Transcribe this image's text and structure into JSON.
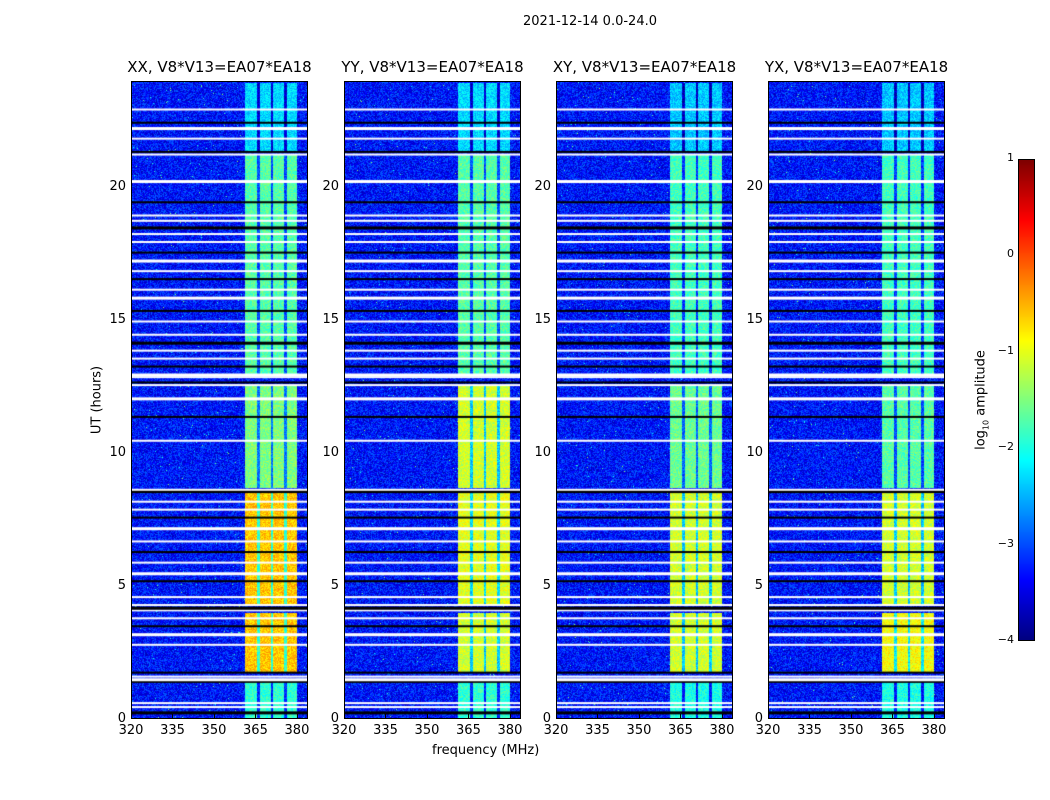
{
  "chart_data": {
    "type": "heatmap",
    "title": "2021-12-14 0.0-24.0",
    "xlabel": "frequency (MHz)",
    "ylabel": "UT (hours)",
    "xlim": [
      320,
      384
    ],
    "ylim": [
      0,
      24
    ],
    "xticks": [
      "320",
      "335",
      "350",
      "365",
      "380"
    ],
    "xtick_values": [
      320,
      335,
      350,
      365,
      380
    ],
    "yticks": [
      "0",
      "5",
      "10",
      "15",
      "20"
    ],
    "ytick_values": [
      0,
      5,
      10,
      15,
      20
    ],
    "panels": [
      {
        "title": "XX, V8*V13=EA07*EA18"
      },
      {
        "title": "YY, V8*V13=EA07*EA18"
      },
      {
        "title": "XY, V8*V13=EA07*EA18"
      },
      {
        "title": "YX, V8*V13=EA07*EA18"
      }
    ],
    "colorbar": {
      "label": "log10 amplitude",
      "label_main": "log",
      "label_sub": "10",
      "label_rest": " amplitude",
      "range": [
        -4,
        1
      ],
      "ticks": [
        "1",
        "0",
        "−1",
        "−2",
        "−3",
        "−4"
      ],
      "tick_values": [
        1,
        0,
        -1,
        -2,
        -3,
        -4
      ],
      "colormap": "jet"
    },
    "background_level": -3.3,
    "bright_band_mhz": [
      361,
      380
    ],
    "band_dividers_mhz": [
      366,
      371,
      376
    ],
    "segments": [
      {
        "t": [
          0,
          1.5
        ],
        "band_level": [
          -1.9,
          -1.9,
          -2.0,
          -2.0
        ]
      },
      {
        "t": [
          1.7,
          4.0
        ],
        "band_level": [
          -0.6,
          -1.1,
          -1.1,
          -0.9
        ]
      },
      {
        "t": [
          4.3,
          8.6
        ],
        "band_level": [
          -0.6,
          -1.0,
          -1.1,
          -1.1
        ]
      },
      {
        "t": [
          8.7,
          12.6
        ],
        "band_level": [
          -1.5,
          -1.1,
          -1.6,
          -1.7
        ]
      },
      {
        "t": [
          13.0,
          21.3
        ],
        "band_level": [
          -1.7,
          -1.7,
          -1.8,
          -1.8
        ]
      },
      {
        "t": [
          21.4,
          24
        ],
        "band_level": [
          -2.3,
          -2.3,
          -2.4,
          -2.4
        ]
      }
    ],
    "flagged_hours": [
      0.25,
      0.45,
      0.6,
      1.4,
      1.5,
      1.6,
      1.75,
      2.8,
      3.2,
      3.5,
      3.8,
      4.1,
      4.2,
      4.3,
      4.6,
      5.2,
      5.5,
      5.9,
      6.3,
      6.7,
      7.2,
      7.6,
      7.9,
      8.2,
      8.6,
      8.65,
      10.5,
      11.4,
      12.1,
      12.6,
      12.7,
      12.9,
      13.0,
      13.3,
      13.6,
      13.9,
      14.2,
      14.5,
      15.0,
      15.4,
      15.9,
      16.2,
      16.6,
      16.9,
      17.3,
      17.6,
      18.0,
      18.3,
      18.55,
      18.8,
      19.0,
      19.5,
      20.3,
      21.3,
      21.4,
      21.9,
      22.3,
      22.5,
      23.0
    ]
  }
}
